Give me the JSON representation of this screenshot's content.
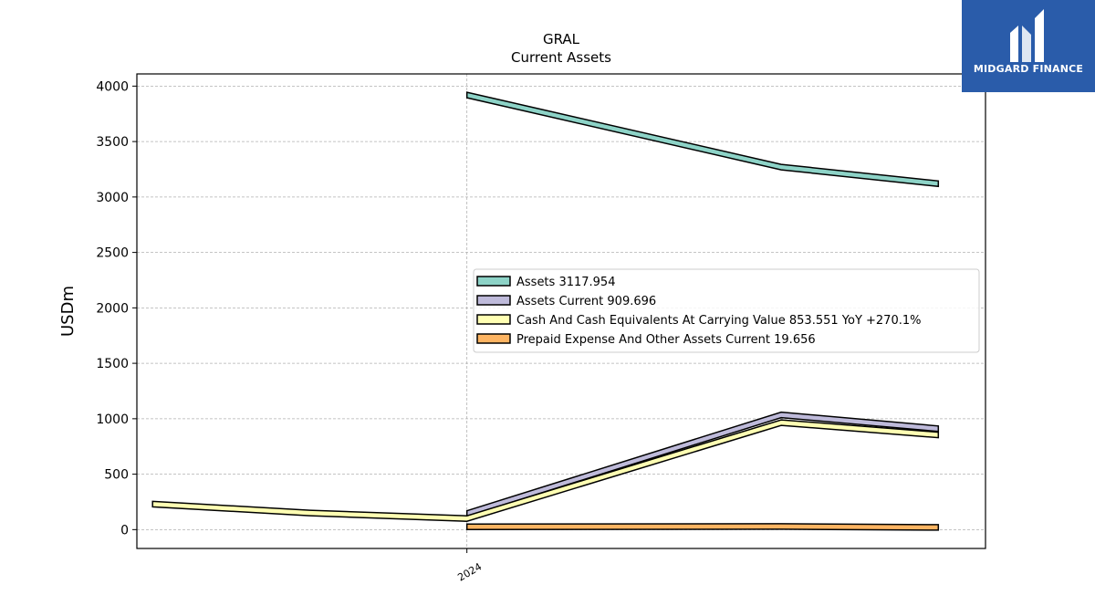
{
  "chart_data": {
    "type": "area",
    "title": "GRAL",
    "subtitle": "Current  Assets",
    "ylabel": "USDm",
    "xlabel": "",
    "x_tick_labels": [
      "2024"
    ],
    "y_ticks": [
      0,
      500,
      1000,
      1500,
      2000,
      2500,
      3000,
      3500,
      4000
    ],
    "ylim": [
      -170,
      4110
    ],
    "x_range": [
      -0.1,
      5.3
    ],
    "grid": true,
    "legend_position": "center-right",
    "series": [
      {
        "name": "Assets",
        "legend_label": "Assets  3117.954",
        "color": "#8dd3c7",
        "x": [
          2,
          4,
          5
        ],
        "values": [
          3920,
          3270,
          3120
        ]
      },
      {
        "name": "Assets Current",
        "legend_label": "Assets Current  909.696",
        "color": "#bebada",
        "x": [
          2,
          4,
          5
        ],
        "values": [
          145,
          1035,
          910
        ]
      },
      {
        "name": "Cash And Cash Equivalents At Carrying Value",
        "legend_label": "Cash And Cash Equivalents At Carrying Value  853.551 YoY +270.1%",
        "color": "#ffffb3",
        "x": [
          0,
          1,
          2,
          4,
          5
        ],
        "values": [
          230,
          150,
          100,
          965,
          854
        ]
      },
      {
        "name": "Prepaid Expense And Other Assets Current",
        "legend_label": "Prepaid Expense And Other Assets Current  19.656",
        "color": "#fdb462",
        "x": [
          2,
          4,
          5
        ],
        "values": [
          25,
          28,
          20
        ]
      }
    ]
  },
  "logo": {
    "text": "MIDGARD FINANCE",
    "color": "#2a5caa"
  }
}
